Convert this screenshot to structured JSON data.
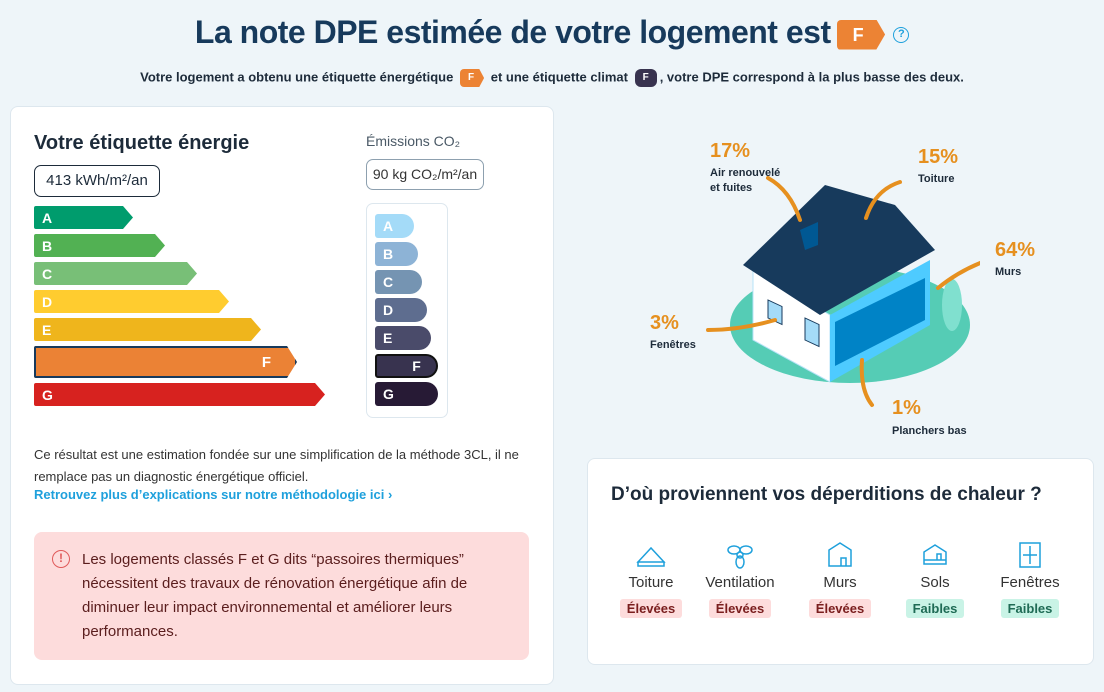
{
  "header": {
    "title": "La note DPE estimée de votre logement est",
    "grade": "F",
    "help_icon": "question-circle-icon",
    "subtitle_pre": "Votre logement a obtenu une étiquette énergétique",
    "energy_grade": "F",
    "subtitle_mid": "et une étiquette climat",
    "climate_grade": "F",
    "subtitle_post": ", votre DPE correspond à la plus basse des deux."
  },
  "energy": {
    "title": "Votre étiquette énergie",
    "value": "413 kWh/m²/an",
    "selected": "F",
    "classes": [
      {
        "label": "A",
        "color": "#009c6d"
      },
      {
        "label": "B",
        "color": "#52b153"
      },
      {
        "label": "C",
        "color": "#78bf77"
      },
      {
        "label": "D",
        "color": "#ffcc2f"
      },
      {
        "label": "E",
        "color": "#efb51c"
      },
      {
        "label": "F",
        "color": "#eb8235"
      },
      {
        "label": "G",
        "color": "#d7221f"
      }
    ]
  },
  "climate": {
    "title": "Émissions CO₂",
    "value": "90 kg CO₂/m²/an",
    "selected": "F",
    "classes": [
      {
        "label": "A",
        "color": "#a4dbf8"
      },
      {
        "label": "B",
        "color": "#8db3d6"
      },
      {
        "label": "C",
        "color": "#7594b2"
      },
      {
        "label": "D",
        "color": "#5e6d8f"
      },
      {
        "label": "E",
        "color": "#4a4b6a"
      },
      {
        "label": "F",
        "color": "#38334f"
      },
      {
        "label": "G",
        "color": "#271a35"
      }
    ]
  },
  "disclaimer": "Ce résultat est une estimation fondée sur une simplification de la méthode 3CL, il ne remplace pas un diagnostic énergétique officiel.",
  "methodology_link": "Retrouvez plus d’explications sur notre méthodologie ici ›",
  "alert": {
    "icon": "exclamation-circle-icon",
    "text": "Les logements classés F et G dits “passoires thermiques” nécessitent des travaux de rénovation énergétique afin de diminuer leur impact environnemental et améliorer leurs performances."
  },
  "losses": [
    {
      "pct": "17%",
      "label": "Air renouvelé et fuites"
    },
    {
      "pct": "15%",
      "label": "Toiture"
    },
    {
      "pct": "64%",
      "label": "Murs"
    },
    {
      "pct": "3%",
      "label": "Fenêtres"
    },
    {
      "pct": "1%",
      "label": "Planchers bas"
    }
  ],
  "sources": {
    "title": "D’où proviennent vos déperditions de chaleur ?",
    "items": [
      {
        "name": "Toiture",
        "level": "Élevées",
        "icon": "roof-icon",
        "status": "high"
      },
      {
        "name": "Ventilation",
        "level": "Élevées",
        "icon": "fan-icon",
        "status": "high"
      },
      {
        "name": "Murs",
        "level": "Élevées",
        "icon": "house-walls-icon",
        "status": "high"
      },
      {
        "name": "Sols",
        "level": "Faibles",
        "icon": "house-floor-icon",
        "status": "low"
      },
      {
        "name": "Fenêtres",
        "level": "Faibles",
        "icon": "window-icon",
        "status": "low"
      }
    ]
  }
}
